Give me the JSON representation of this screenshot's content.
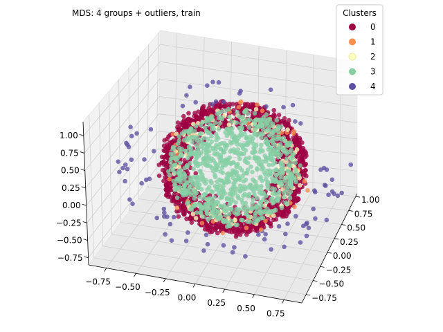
{
  "chart_data": {
    "type": "scatter",
    "projection": "3d",
    "title": "MDS: 4 groups + outliers, train",
    "xlabel": "",
    "ylabel": "",
    "zlabel": "",
    "xlim": [
      -0.9,
      0.9
    ],
    "ylim": [
      -0.9,
      1.05
    ],
    "zlim": [
      -0.85,
      1.2
    ],
    "x_ticks": [
      "−0.75",
      "−0.50",
      "−0.25",
      "0.00",
      "0.25",
      "0.50",
      "0.75"
    ],
    "y_ticks": [
      "−0.75",
      "−0.50",
      "−0.25",
      "0.00",
      "0.25",
      "0.50",
      "0.75",
      "1.00"
    ],
    "z_ticks": [
      "−0.75",
      "−0.50",
      "−0.25",
      "0.00",
      "0.25",
      "0.50",
      "0.75",
      "1.00"
    ],
    "grid": true,
    "legend": {
      "title": "Clusters",
      "placement": "top-right",
      "entries": [
        {
          "label": "0",
          "color": "#9e0142"
        },
        {
          "label": "1",
          "color": "#f98e52"
        },
        {
          "label": "2",
          "color": "#ffffbe"
        },
        {
          "label": "3",
          "color": "#86cfa5"
        },
        {
          "label": "4",
          "color": "#5e4fa2"
        }
      ]
    },
    "series": [
      {
        "name": "0",
        "color": "#9e0142",
        "description": "dense shell, radius ~0.6"
      },
      {
        "name": "1",
        "color": "#f98e52",
        "description": "sparse points"
      },
      {
        "name": "2",
        "color": "#ffffbe",
        "description": "points spread through shell"
      },
      {
        "name": "3",
        "color": "#86cfa5",
        "description": "dense inner core, radius ~0.45"
      },
      {
        "name": "4",
        "color": "#5e4fa2",
        "description": "outliers, radius ~0.75"
      }
    ]
  }
}
